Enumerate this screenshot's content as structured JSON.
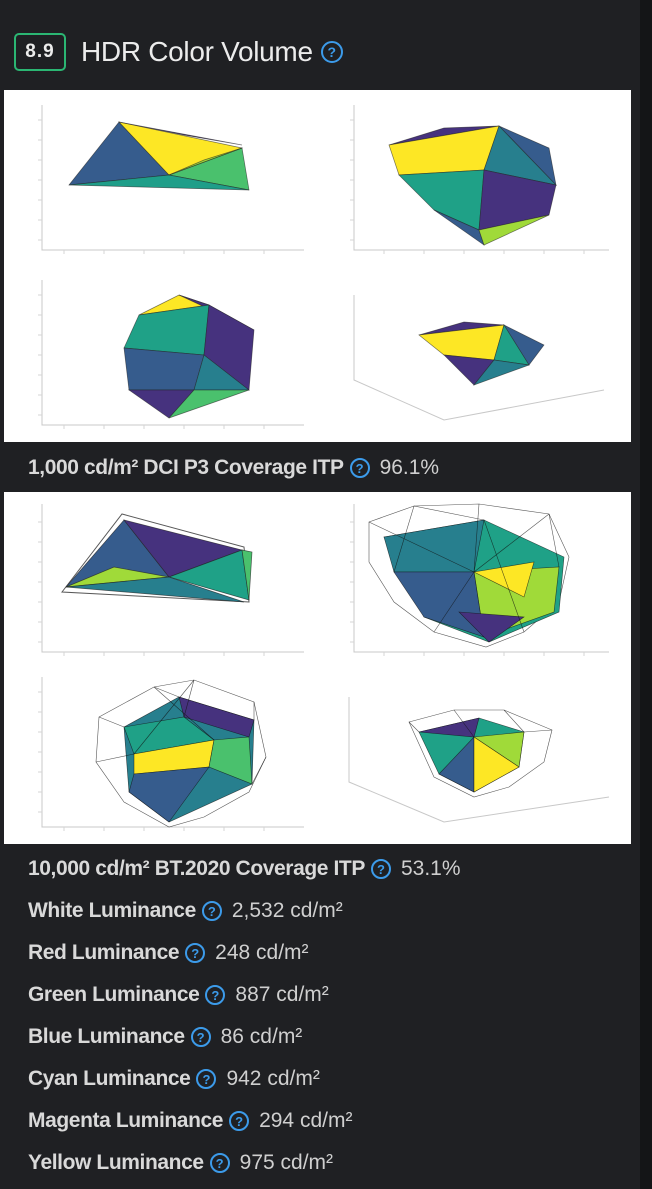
{
  "section": {
    "score": "8.9",
    "title": "HDR Color Volume",
    "help_glyph": "?"
  },
  "colors": {
    "score_border": "#2bb673",
    "help_icon": "#3c9bea",
    "background": "#1f2023"
  },
  "figures": [
    {
      "name": "dci-p3-itp-gamut-plots",
      "palette": [
        "#46327e",
        "#365c8d",
        "#277f8e",
        "#1fa187",
        "#4ac16d",
        "#a0da39",
        "#fde725"
      ]
    },
    {
      "name": "bt2020-itp-gamut-plots",
      "palette": [
        "#46327e",
        "#365c8d",
        "#277f8e",
        "#1fa187",
        "#4ac16d",
        "#a0da39",
        "#fde725"
      ]
    }
  ],
  "measurements": [
    {
      "label": "1,000 cd/m² DCI P3 Coverage ITP",
      "value": "96.1%"
    },
    {
      "label": "10,000 cd/m² BT.2020 Coverage ITP",
      "value": "53.1%"
    },
    {
      "label": "White Luminance",
      "value": "2,532 cd/m²"
    },
    {
      "label": "Red Luminance",
      "value": "248 cd/m²"
    },
    {
      "label": "Green Luminance",
      "value": "887 cd/m²"
    },
    {
      "label": "Blue Luminance",
      "value": "86 cd/m²"
    },
    {
      "label": "Cyan Luminance",
      "value": "942 cd/m²"
    },
    {
      "label": "Magenta Luminance",
      "value": "294 cd/m²"
    },
    {
      "label": "Yellow Luminance",
      "value": "975 cd/m²"
    }
  ]
}
